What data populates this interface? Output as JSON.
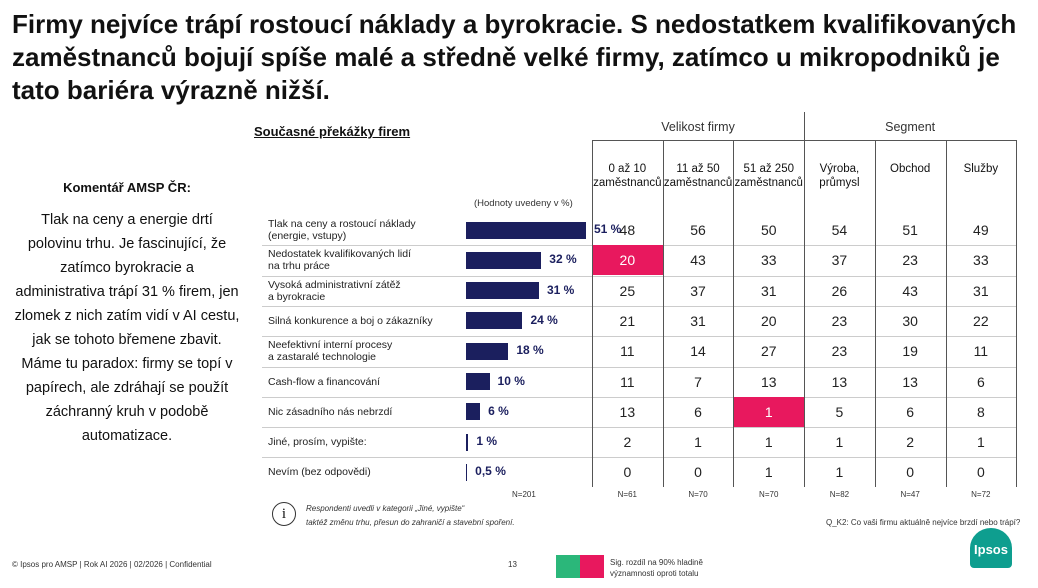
{
  "title": "Firmy nejvíce trápí rostoucí náklady a byrokracie. S nedostatkem kvalifikovaných zaměstnanců bojují spíše malé a středně velké firmy, zatímco u mikropodniků je tato bariéra výrazně nižší.",
  "comment": {
    "heading": "Komentář AMSP ČR:",
    "text": "Tlak na ceny a energie drtí polovinu trhu. Je fascinující, že zatímco byrokracie a administrativa trápí 31 % firem, jen zlomek z nich zatím vidí v AI cestu, jak se tohoto břemene zbavit. Máme tu paradox: firmy se topí v papírech, ale zdráhají se použít záchranný kruh v podobě automatizace."
  },
  "chart_data": {
    "type": "bar",
    "orientation": "horizontal",
    "title": "Současné překážky firem",
    "note": "(Hodnoty uvedeny v %)",
    "categories": [
      "Tlak na ceny a rostoucí náklady\n(energie, vstupy)",
      "Nedostatek kvalifikovaných lidí\nna trhu práce",
      "Vysoká administrativní zátěž\na byrokracie",
      "Silná konkurence a boj o zákazníky",
      "Neefektivní interní procesy\na zastaralé technologie",
      "Cash-flow a financování",
      "Nic zásadního nás nebrzdí",
      "Jiné, prosím, vypište:",
      "Nevím (bez odpovědi)"
    ],
    "values": [
      51,
      32,
      31,
      24,
      18,
      10,
      6,
      1,
      0.5
    ],
    "value_labels": [
      "51 %",
      "32 %",
      "31 %",
      "24 %",
      "18 %",
      "10 %",
      "6 %",
      "1 %",
      "0,5 %"
    ],
    "color": "#1b1f5e",
    "n": "N=201"
  },
  "table": {
    "groups": [
      {
        "label": "Velikost firmy",
        "columns": [
          {
            "label": "0 až 10\nzaměstnanců",
            "n": "N=61",
            "values": [
              48,
              20,
              25,
              21,
              11,
              11,
              13,
              2,
              0
            ],
            "highlighted_rows": [
              1
            ]
          },
          {
            "label": "11 až 50\nzaměstnanců",
            "n": "N=70",
            "values": [
              56,
              43,
              37,
              31,
              14,
              7,
              6,
              1,
              0
            ],
            "highlighted_rows": []
          },
          {
            "label": "51 až 250\nzaměstnanců",
            "n": "N=70",
            "values": [
              50,
              33,
              31,
              20,
              27,
              13,
              1,
              1,
              1
            ],
            "highlighted_rows": [
              6
            ]
          }
        ]
      },
      {
        "label": "Segment",
        "columns": [
          {
            "label": "Výroba,\nprůmysl",
            "n": "N=82",
            "values": [
              54,
              37,
              26,
              23,
              23,
              13,
              5,
              1,
              1
            ],
            "highlighted_rows": []
          },
          {
            "label": "Obchod",
            "n": "N=47",
            "values": [
              51,
              23,
              43,
              30,
              19,
              13,
              6,
              2,
              0
            ],
            "highlighted_rows": []
          },
          {
            "label": "Služby",
            "n": "N=72",
            "values": [
              49,
              33,
              31,
              22,
              11,
              6,
              8,
              1,
              0
            ],
            "highlighted_rows": []
          }
        ]
      }
    ],
    "highlight_color": "#e8185e"
  },
  "footnote": "Respondenti uvedli v kategorii „Jiné, vypište“\ntaktéž změnu trhu, přesun do zahraničí a stavební spoření.",
  "question": "Q_K2: Co vaši firmu aktuálně nejvíce brzdí nebo trápí?",
  "legend": {
    "text": "Sig. rozdíl na 90% hladině\nvýznamnosti oproti totalu",
    "colors": [
      "#2bb77a",
      "#e8185e"
    ]
  },
  "footer": "© Ipsos pro AMSP | Rok AI 2026 | 02/2026 | Confidential",
  "page": "13",
  "logo": "Ipsos"
}
